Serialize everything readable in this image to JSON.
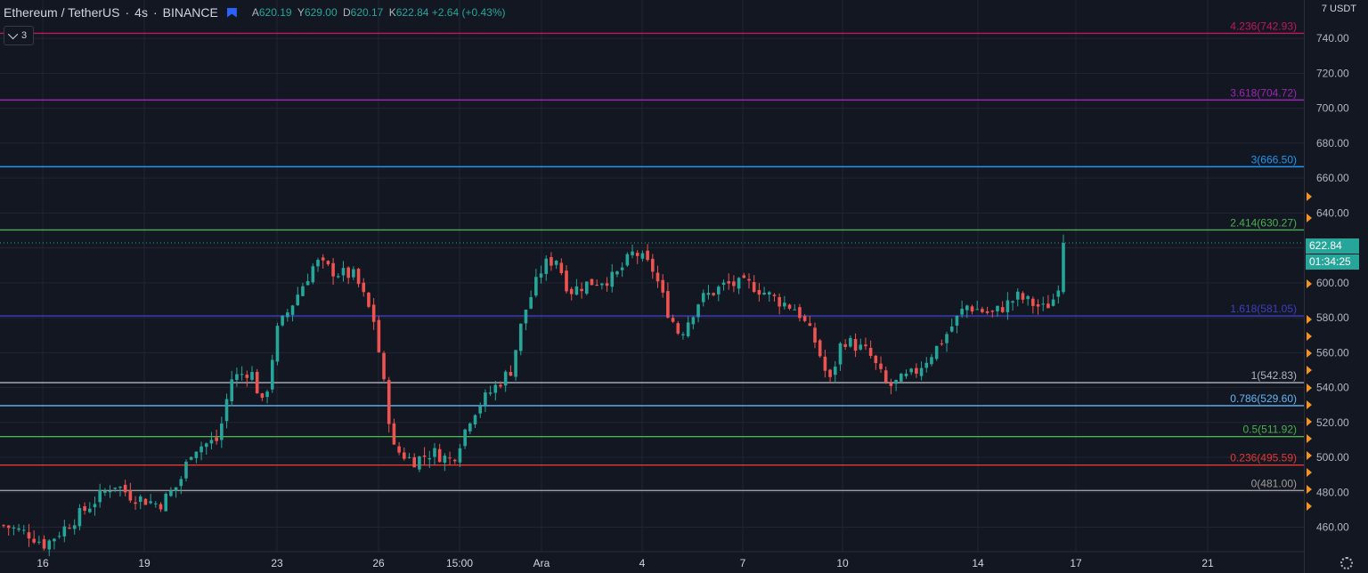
{
  "header": {
    "symbol": "Ethereum / TetherUS",
    "interval": "4s",
    "exchange": "BINANCE",
    "ohlc": {
      "a_label": "A",
      "a_value": "620.19",
      "y_label": "Y",
      "y_value": "629.00",
      "d_label": "D",
      "d_value": "620.17",
      "k_label": "K",
      "k_value": "622.84",
      "change": "+2.64 (+0.43%)"
    },
    "indicator_count": "3"
  },
  "price_scale": {
    "unit": "7 USDT",
    "current_price": "622.84",
    "countdown": "01:34:25"
  },
  "colors": {
    "background": "#131722",
    "grid": "#222632",
    "up": "#26a69a",
    "down": "#ef5350",
    "tag": "#26a69a",
    "alert": "#f7931a"
  },
  "icons": [
    "flag-icon",
    "chevron-down-icon",
    "settings-gear-icon",
    "alert-marker-icon"
  ],
  "chart_data": {
    "type": "candlestick",
    "title": "Ethereum / TetherUS",
    "ylabel": "USDT",
    "ylim": [
      446,
      762
    ],
    "grid": true,
    "yticks": [
      "740.00",
      "720.00",
      "700.00",
      "680.00",
      "660.00",
      "640.00",
      "620.00",
      "600.00",
      "580.00",
      "560.00",
      "540.00",
      "520.00",
      "500.00",
      "480.00",
      "460.00"
    ],
    "xticks": [
      "16",
      "19",
      "23",
      "26",
      "15:00",
      "Ara",
      "4",
      "7",
      "10",
      "14",
      "17",
      "21"
    ],
    "fib_levels": [
      {
        "label": "4.236(742.93)",
        "price": 742.93,
        "color": "#c2185b"
      },
      {
        "label": "3.618(704.72)",
        "price": 704.72,
        "color": "#9c27b0"
      },
      {
        "label": "3(666.50)",
        "price": 666.5,
        "color": "#2196f3"
      },
      {
        "label": "2.414(630.27)",
        "price": 630.27,
        "color": "#4caf50"
      },
      {
        "label": "1.618(581.05)",
        "price": 581.05,
        "color": "#3f3fbf"
      },
      {
        "label": "1(542.83)",
        "price": 542.83,
        "color": "#b2b5be"
      },
      {
        "label": "0.786(529.60)",
        "price": 529.6,
        "color": "#64b5f6"
      },
      {
        "label": "0.5(511.92)",
        "price": 511.92,
        "color": "#4caf50"
      },
      {
        "label": "0.236(495.59)",
        "price": 495.59,
        "color": "#e53935"
      },
      {
        "label": "0(481.00)",
        "price": 481.0,
        "color": "#9e9e9e"
      }
    ],
    "current_price": 622.84,
    "series_anchors": [
      {
        "t": 0,
        "p": 461
      },
      {
        "t": 0.02,
        "p": 456
      },
      {
        "t": 0.032,
        "p": 450
      },
      {
        "t": 0.055,
        "p": 465
      },
      {
        "t": 0.085,
        "p": 485
      },
      {
        "t": 0.098,
        "p": 478
      },
      {
        "t": 0.12,
        "p": 473
      },
      {
        "t": 0.135,
        "p": 485
      },
      {
        "t": 0.145,
        "p": 505
      },
      {
        "t": 0.165,
        "p": 510
      },
      {
        "t": 0.175,
        "p": 545
      },
      {
        "t": 0.19,
        "p": 550
      },
      {
        "t": 0.2,
        "p": 528
      },
      {
        "t": 0.21,
        "p": 572
      },
      {
        "t": 0.24,
        "p": 612
      },
      {
        "t": 0.255,
        "p": 606
      },
      {
        "t": 0.27,
        "p": 604
      },
      {
        "t": 0.285,
        "p": 578
      },
      {
        "t": 0.3,
        "p": 505
      },
      {
        "t": 0.315,
        "p": 498
      },
      {
        "t": 0.33,
        "p": 503
      },
      {
        "t": 0.345,
        "p": 498
      },
      {
        "t": 0.36,
        "p": 525
      },
      {
        "t": 0.375,
        "p": 538
      },
      {
        "t": 0.39,
        "p": 550
      },
      {
        "t": 0.4,
        "p": 582
      },
      {
        "t": 0.415,
        "p": 610
      },
      {
        "t": 0.425,
        "p": 614
      },
      {
        "t": 0.435,
        "p": 595
      },
      {
        "t": 0.45,
        "p": 600
      },
      {
        "t": 0.47,
        "p": 603
      },
      {
        "t": 0.485,
        "p": 618
      },
      {
        "t": 0.5,
        "p": 607
      },
      {
        "t": 0.51,
        "p": 585
      },
      {
        "t": 0.52,
        "p": 570
      },
      {
        "t": 0.535,
        "p": 590
      },
      {
        "t": 0.555,
        "p": 599
      },
      {
        "t": 0.575,
        "p": 599
      },
      {
        "t": 0.595,
        "p": 590
      },
      {
        "t": 0.61,
        "p": 585
      },
      {
        "t": 0.625,
        "p": 565
      },
      {
        "t": 0.635,
        "p": 542
      },
      {
        "t": 0.645,
        "p": 568
      },
      {
        "t": 0.665,
        "p": 560
      },
      {
        "t": 0.68,
        "p": 540
      },
      {
        "t": 0.7,
        "p": 548
      },
      {
        "t": 0.72,
        "p": 565
      },
      {
        "t": 0.74,
        "p": 587
      },
      {
        "t": 0.76,
        "p": 582
      },
      {
        "t": 0.78,
        "p": 592
      },
      {
        "t": 0.8,
        "p": 585
      },
      {
        "t": 0.81,
        "p": 593
      },
      {
        "t": 0.815,
        "p": 622.84
      }
    ]
  }
}
